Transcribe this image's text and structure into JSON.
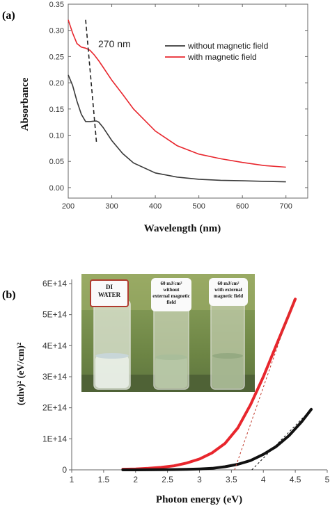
{
  "panel_labels": {
    "a": "(a)",
    "b": "(b)"
  },
  "colors": {
    "red": "#e8262d",
    "dark": "#3a3a3a",
    "black": "#111111",
    "dashed_red": "#c0392b",
    "axis": "#555555"
  },
  "inset": {
    "cap_labels": [
      {
        "line1": "DI",
        "line2": "WATER",
        "line3": ""
      },
      {
        "line1": "60 mJ/cm²",
        "line2": "without",
        "line3": "external magnetic field"
      },
      {
        "line1": "60 mJ/cm²",
        "line2": "with external",
        "line3": "magnetic field"
      }
    ]
  },
  "chart_data": [
    {
      "type": "line",
      "panel": "(a)",
      "xlabel": "Wavelength (nm)",
      "ylabel": "Absorbance",
      "xlim": [
        200,
        750
      ],
      "ylim": [
        -0.02,
        0.35
      ],
      "xticks": [
        200,
        300,
        400,
        500,
        600,
        700
      ],
      "yticks": [
        0.0,
        0.05,
        0.1,
        0.15,
        0.2,
        0.25,
        0.3,
        0.35
      ],
      "ytick_labels": [
        "0.00",
        "0.05",
        "0.10",
        "0.15",
        "0.20",
        "0.25",
        "0.30",
        "0.35"
      ],
      "annotation": "270 nm",
      "legend_position": "top-right",
      "series": [
        {
          "name": "without magnetic field",
          "color": "#3a3a3a",
          "x": [
            200,
            210,
            220,
            230,
            240,
            250,
            260,
            265,
            270,
            280,
            300,
            325,
            350,
            400,
            450,
            500,
            550,
            600,
            650,
            700
          ],
          "y": [
            0.215,
            0.195,
            0.165,
            0.14,
            0.126,
            0.126,
            0.127,
            0.127,
            0.125,
            0.115,
            0.09,
            0.065,
            0.047,
            0.028,
            0.02,
            0.016,
            0.014,
            0.013,
            0.012,
            0.011
          ]
        },
        {
          "name": "with magnetic field",
          "color": "#e8262d",
          "x": [
            200,
            210,
            220,
            230,
            240,
            250,
            260,
            270,
            280,
            300,
            325,
            350,
            400,
            450,
            500,
            550,
            600,
            650,
            700
          ],
          "y": [
            0.32,
            0.295,
            0.275,
            0.268,
            0.266,
            0.262,
            0.253,
            0.242,
            0.23,
            0.205,
            0.178,
            0.15,
            0.108,
            0.08,
            0.064,
            0.055,
            0.048,
            0.042,
            0.039
          ]
        }
      ]
    },
    {
      "type": "scatter",
      "panel": "(b)",
      "xlabel": "Photon energy (eV)",
      "ylabel": "(αhν)² (eV/cm)²",
      "xlim": [
        1,
        5
      ],
      "ylim": [
        0,
        600000000000000.0
      ],
      "xticks": [
        1,
        1.5,
        2,
        2.5,
        3,
        3.5,
        4,
        4.5,
        5
      ],
      "xtick_labels": [
        "1",
        "1.5",
        "2",
        "2.5",
        "3",
        "3.5",
        "4",
        "4.5",
        "5"
      ],
      "yticks": [
        0,
        100000000000000.0,
        200000000000000.0,
        300000000000000.0,
        400000000000000.0,
        500000000000000.0,
        600000000000000.0
      ],
      "ytick_labels": [
        "0",
        "1E+14",
        "2E+14",
        "3E+14",
        "4E+14",
        "5E+14",
        "6E+14"
      ],
      "series": [
        {
          "color": "#e8262d",
          "x": [
            1.8,
            2.0,
            2.2,
            2.4,
            2.6,
            2.8,
            3.0,
            3.2,
            3.4,
            3.6,
            3.8,
            4.0,
            4.2,
            4.4,
            4.5
          ],
          "y": [
            2000000000000.0,
            3000000000000.0,
            5000000000000.0,
            8000000000000.0,
            13000000000000.0,
            22000000000000.0,
            35000000000000.0,
            55000000000000.0,
            85000000000000.0,
            135000000000000.0,
            210000000000000.0,
            300000000000000.0,
            400000000000000.0,
            500000000000000.0,
            550000000000000.0
          ]
        },
        {
          "color": "#111111",
          "x": [
            1.8,
            2.0,
            2.4,
            2.8,
            3.0,
            3.2,
            3.4,
            3.6,
            3.8,
            4.0,
            4.2,
            4.4,
            4.6,
            4.75
          ],
          "y": [
            0.0,
            0.0,
            500000000000.0,
            1500000000000.0,
            3000000000000.0,
            5000000000000.0,
            10000000000000.0,
            18000000000000.0,
            30000000000000.0,
            50000000000000.0,
            75000000000000.0,
            110000000000000.0,
            155000000000000.0,
            195000000000000.0
          ]
        }
      ],
      "fit_lines": [
        {
          "color": "#c0392b",
          "x": [
            3.55,
            4.48
          ],
          "y": [
            0,
            550000000000000.0
          ]
        },
        {
          "color": "#111111",
          "x": [
            3.82,
            4.75
          ],
          "y": [
            0,
            195000000000000.0
          ]
        }
      ]
    }
  ]
}
